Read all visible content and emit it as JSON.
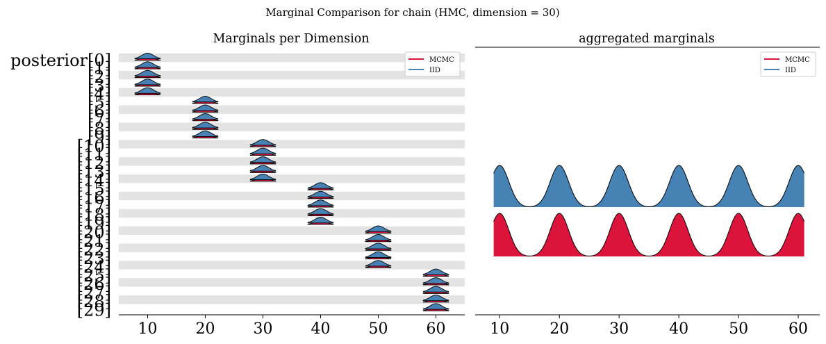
{
  "suptitle": "Marginal Comparison for chain (HMC, dimension = 30)",
  "colors": {
    "mcmc": "#DC143C",
    "iid": "#4682B4",
    "band": "#E3E3E3",
    "axis": "#000000"
  },
  "chart_data": [
    {
      "type": "ridgeline",
      "title": "Marginals per Dimension",
      "xlim": [
        5,
        65
      ],
      "xticks": [
        10,
        20,
        30,
        40,
        50,
        60
      ],
      "grid": false,
      "legend": {
        "position": "top-right",
        "entries": [
          "MCMC",
          "IID"
        ]
      },
      "first_label": "posterior[0]",
      "row_labels": [
        "[1]",
        "[2]",
        "[3]",
        "[4]",
        "[5]",
        "[6]",
        "[7]",
        "[8]",
        "[9]",
        "[10]",
        "[11]",
        "[12]",
        "[13]",
        "[14]",
        "[15]",
        "[16]",
        "[17]",
        "[18]",
        "[19]",
        "[20]",
        "[21]",
        "[22]",
        "[23]",
        "[24]",
        "[25]",
        "[26]",
        "[27]",
        "[28]",
        "[29]"
      ],
      "series": [
        {
          "name": "MCMC",
          "means": [
            10,
            10,
            10,
            10,
            10,
            20,
            20,
            20,
            20,
            20,
            30,
            30,
            30,
            30,
            30,
            40,
            40,
            40,
            40,
            40,
            50,
            50,
            50,
            50,
            50,
            60,
            60,
            60,
            60,
            60
          ],
          "std": 0.75
        },
        {
          "name": "IID",
          "means": [
            10,
            10,
            10,
            10,
            10,
            20,
            20,
            20,
            20,
            20,
            30,
            30,
            30,
            30,
            30,
            40,
            40,
            40,
            40,
            40,
            50,
            50,
            50,
            50,
            50,
            60,
            60,
            60,
            60,
            60
          ],
          "std": 0.75
        }
      ]
    },
    {
      "type": "area",
      "title": "aggregated marginals",
      "xlim": [
        5.9,
        63.6
      ],
      "xticks": [
        10,
        20,
        30,
        40,
        50,
        60
      ],
      "grid": false,
      "legend": {
        "position": "top-right",
        "entries": [
          "MCMC",
          "IID"
        ]
      },
      "series": [
        {
          "name": "IID",
          "peaks": [
            10,
            20,
            30,
            40,
            50,
            60
          ],
          "std": 1.55,
          "xrange": [
            9,
            61
          ]
        },
        {
          "name": "MCMC",
          "peaks": [
            10,
            20,
            30,
            40,
            50,
            60
          ],
          "std": 1.55,
          "xrange": [
            9,
            61
          ]
        }
      ]
    }
  ]
}
